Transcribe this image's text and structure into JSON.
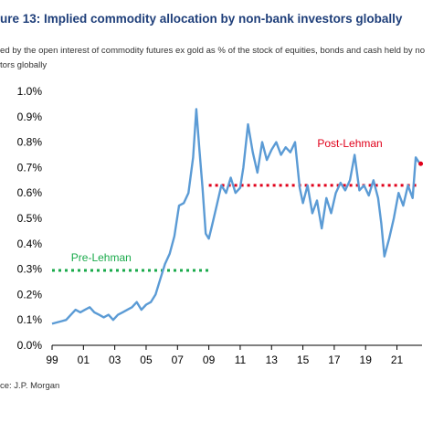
{
  "header": {
    "title": "ure 13: Implied commodity allocation by non-bank investors globally",
    "subtitle_line1": "ed by the open interest of commodity futures ex gold as % of the stock of equities, bonds and cash held by no",
    "subtitle_line2": "tors globally"
  },
  "footer": {
    "source": "ce: J.P. Morgan"
  },
  "chart_data": {
    "type": "line",
    "title": "",
    "xlabel": "",
    "ylabel": "",
    "ylim": [
      0,
      1.0
    ],
    "xlim": [
      1999,
      2022.6
    ],
    "grid": false,
    "y_ticks": [
      "0.0%",
      "0.1%",
      "0.2%",
      "0.3%",
      "0.4%",
      "0.5%",
      "0.6%",
      "0.7%",
      "0.8%",
      "0.9%",
      "1.0%"
    ],
    "x_ticks": [
      "99",
      "01",
      "03",
      "05",
      "07",
      "09",
      "11",
      "13",
      "15",
      "17",
      "19",
      "21"
    ],
    "series": [
      {
        "color": "#5b9bd5",
        "x": [
          1999.0,
          1999.3,
          1999.6,
          1999.9,
          2000.2,
          2000.5,
          2000.8,
          2001.1,
          2001.4,
          2001.7,
          2002.0,
          2002.3,
          2002.6,
          2002.9,
          2003.2,
          2003.5,
          2003.8,
          2004.1,
          2004.4,
          2004.7,
          2005.0,
          2005.3,
          2005.6,
          2005.9,
          2006.2,
          2006.5,
          2006.8,
          2007.1,
          2007.4,
          2007.7,
          2008.0,
          2008.2,
          2008.4,
          2008.6,
          2008.8,
          2009.0,
          2009.2,
          2009.5,
          2009.8,
          2010.1,
          2010.4,
          2010.7,
          2011.0,
          2011.2,
          2011.5,
          2011.8,
          2012.1,
          2012.4,
          2012.7,
          2013.0,
          2013.3,
          2013.6,
          2013.9,
          2014.2,
          2014.5,
          2014.8,
          2015.0,
          2015.3,
          2015.6,
          2015.9,
          2016.2,
          2016.5,
          2016.8,
          2017.1,
          2017.4,
          2017.7,
          2018.0,
          2018.3,
          2018.6,
          2018.9,
          2019.2,
          2019.5,
          2019.8,
          2020.0,
          2020.2,
          2020.5,
          2020.8,
          2021.1,
          2021.4,
          2021.7,
          2022.0,
          2022.2,
          2022.4
        ],
        "y": [
          0.085,
          0.09,
          0.095,
          0.1,
          0.12,
          0.14,
          0.13,
          0.14,
          0.15,
          0.13,
          0.12,
          0.11,
          0.12,
          0.1,
          0.12,
          0.13,
          0.14,
          0.15,
          0.17,
          0.14,
          0.16,
          0.17,
          0.2,
          0.26,
          0.32,
          0.36,
          0.43,
          0.55,
          0.56,
          0.6,
          0.74,
          0.93,
          0.77,
          0.62,
          0.44,
          0.42,
          0.47,
          0.55,
          0.63,
          0.6,
          0.66,
          0.6,
          0.62,
          0.7,
          0.87,
          0.76,
          0.68,
          0.8,
          0.73,
          0.77,
          0.8,
          0.75,
          0.78,
          0.76,
          0.8,
          0.62,
          0.56,
          0.63,
          0.52,
          0.57,
          0.46,
          0.58,
          0.52,
          0.6,
          0.64,
          0.61,
          0.65,
          0.75,
          0.61,
          0.63,
          0.59,
          0.65,
          0.58,
          0.48,
          0.35,
          0.42,
          0.5,
          0.6,
          0.55,
          0.63,
          0.58,
          0.74,
          0.72
        ]
      }
    ],
    "reference_lines": [
      {
        "label": "Pre-Lehman",
        "color": "#1aaa4b",
        "y": 0.295,
        "x_start": 1999.0,
        "x_end": 2009.0
      },
      {
        "label": "Post-Lehman",
        "color": "#e0001a",
        "y": 0.63,
        "x_start": 2009.0,
        "x_end": 2022.4
      }
    ]
  }
}
